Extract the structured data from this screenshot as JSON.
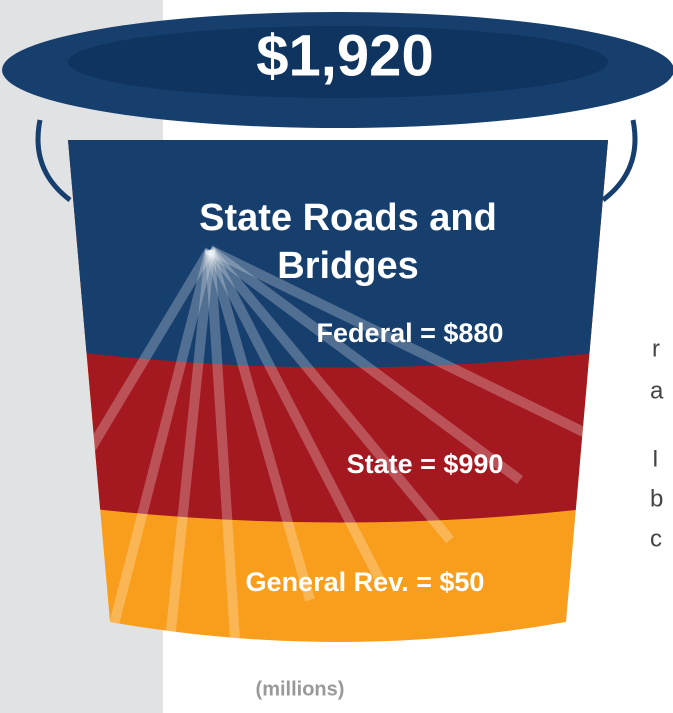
{
  "bucket": {
    "total": "$1,920",
    "label_lines": [
      "State Roads and",
      "Bridges"
    ],
    "segments": [
      "Federal = $880",
      "State = $990",
      "General Rev. = $50"
    ],
    "unit": "(millions)"
  },
  "side_text": [
    "r",
    "a",
    "I",
    "b",
    "c"
  ]
}
